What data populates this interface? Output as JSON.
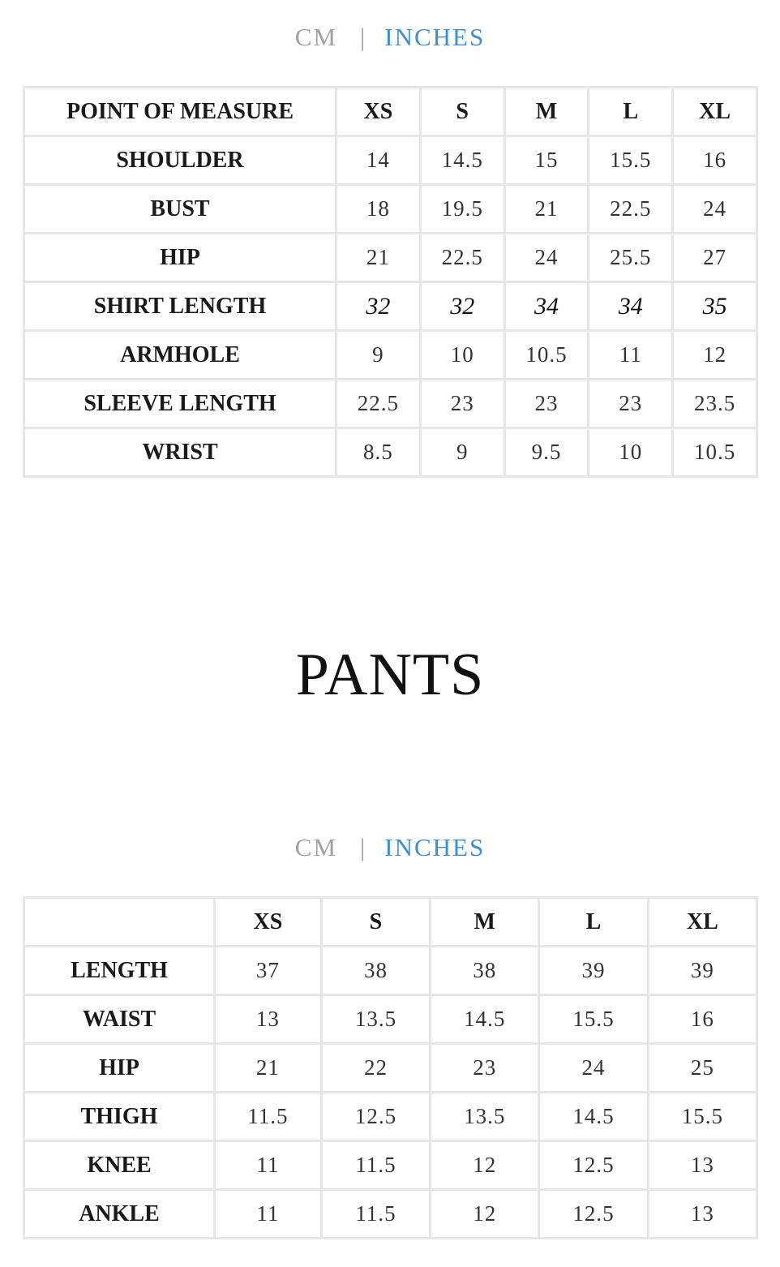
{
  "shirt": {
    "units": {
      "cm": "CM",
      "separator": "|",
      "inches": "INCHES",
      "active": "INCHES"
    },
    "headers": [
      "POINT OF MEASURE",
      "XS",
      "S",
      "M",
      "L",
      "XL"
    ],
    "rows": [
      {
        "label": "SHOULDER",
        "values": [
          "14",
          "14.5",
          "15",
          "15.5",
          "16"
        ]
      },
      {
        "label": "BUST",
        "values": [
          "18",
          "19.5",
          "21",
          "22.5",
          "24"
        ]
      },
      {
        "label": "HIP",
        "values": [
          "21",
          "22.5",
          "24",
          "25.5",
          "27"
        ]
      },
      {
        "label": "SHIRT LENGTH",
        "values": [
          "32",
          "32",
          "34",
          "34",
          "35"
        ],
        "handwritten": true
      },
      {
        "label": "ARMHOLE",
        "values": [
          "9",
          "10",
          "10.5",
          "11",
          "12"
        ]
      },
      {
        "label": "SLEEVE LENGTH",
        "values": [
          "22.5",
          "23",
          "23",
          "23",
          "23.5"
        ]
      },
      {
        "label": "WRIST",
        "values": [
          "8.5",
          "9",
          "9.5",
          "10",
          "10.5"
        ]
      }
    ]
  },
  "pants": {
    "title": "PANTS",
    "units": {
      "cm": "CM",
      "separator": "|",
      "inches": "INCHES",
      "active": "INCHES"
    },
    "headers": [
      "",
      "XS",
      "S",
      "M",
      "L",
      "XL"
    ],
    "rows": [
      {
        "label": "LENGTH",
        "values": [
          "37",
          "38",
          "38",
          "39",
          "39"
        ]
      },
      {
        "label": "WAIST",
        "values": [
          "13",
          "13.5",
          "14.5",
          "15.5",
          "16"
        ]
      },
      {
        "label": "HIP",
        "values": [
          "21",
          "22",
          "23",
          "24",
          "25"
        ]
      },
      {
        "label": "THIGH",
        "values": [
          "11.5",
          "12.5",
          "13.5",
          "14.5",
          "15.5"
        ]
      },
      {
        "label": "KNEE",
        "values": [
          "11",
          "11.5",
          "12",
          "12.5",
          "13"
        ]
      },
      {
        "label": "ANKLE",
        "values": [
          "11",
          "11.5",
          "12",
          "12.5",
          "13"
        ]
      }
    ]
  },
  "colors": {
    "active_unit": "#3b8ed8",
    "inactive_unit": "#a0a0a0",
    "grid": "#e6e6e6"
  }
}
